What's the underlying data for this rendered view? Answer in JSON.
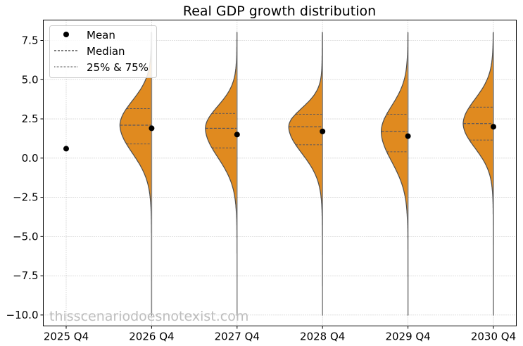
{
  "chart_data": {
    "type": "violin",
    "title": "Real GDP growth distribution",
    "xlabel": "",
    "ylabel": "",
    "categories": [
      "2025 Q4",
      "2026 Q4",
      "2027 Q4",
      "2028 Q4",
      "2029 Q4",
      "2030 Q4"
    ],
    "ylim": [
      -10.7,
      8.8
    ],
    "yticks": [
      -10.0,
      -7.5,
      -5.0,
      -2.5,
      0.0,
      2.5,
      5.0,
      7.5
    ],
    "ytick_labels": [
      "−10.0",
      "−7.5",
      "−5.0",
      "−2.5",
      "0.0",
      "2.5",
      "5.0",
      "7.5"
    ],
    "grid": true,
    "legend_position": "top-left",
    "legend": [
      {
        "label": "Mean",
        "marker": "dot"
      },
      {
        "label": "Median",
        "marker": "dashed"
      },
      {
        "label": "25% & 75%",
        "marker": "dotted"
      }
    ],
    "mean": [
      0.6,
      1.9,
      1.5,
      1.7,
      1.4,
      2.0
    ],
    "median": [
      null,
      2.1,
      1.9,
      2.0,
      1.7,
      2.2
    ],
    "q25": [
      null,
      0.9,
      0.65,
      0.85,
      0.4,
      1.15
    ],
    "q75": [
      null,
      3.15,
      2.85,
      2.8,
      2.8,
      3.25
    ],
    "min": [
      null,
      -10.0,
      -10.0,
      -10.0,
      -10.0,
      -10.0
    ],
    "max": [
      null,
      8.0,
      8.0,
      8.0,
      8.0,
      8.0
    ],
    "fill_color": "#e08a1f",
    "edge_color": "#4d4d4d",
    "quartile_line_color": "#3b4a6b",
    "mean_color": "#000000"
  },
  "watermark": "thisscenariodoesnotexist.com"
}
